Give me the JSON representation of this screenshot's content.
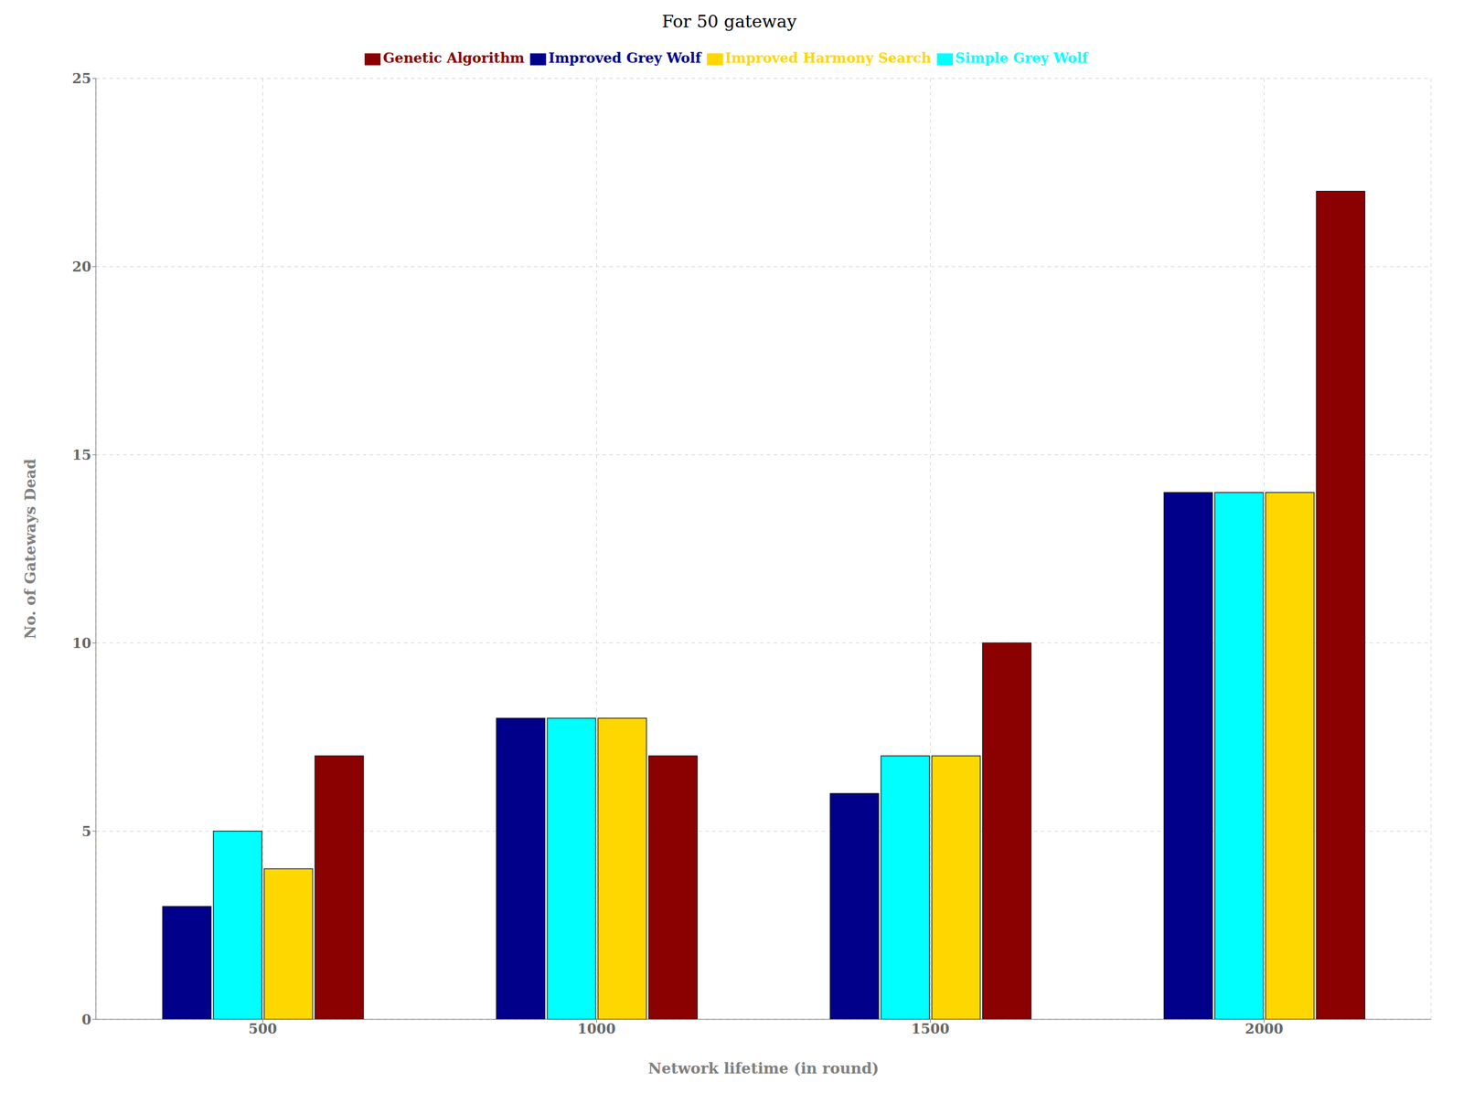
{
  "chart_data": {
    "type": "bar",
    "title": "For 50 gateway",
    "xlabel": "Network lifetime (in round)",
    "ylabel": "No. of Gateways Dead",
    "categories": [
      500,
      1000,
      1500,
      2000
    ],
    "series": [
      {
        "name": "Improved Grey Wolf",
        "color": "#00008B",
        "values": [
          3,
          8,
          6,
          14
        ]
      },
      {
        "name": "Simple Grey Wolf",
        "color": "#00FFFF",
        "values": [
          5,
          8,
          7,
          14
        ]
      },
      {
        "name": "Improved Harmony Search",
        "color": "#FFD700",
        "values": [
          4,
          8,
          7,
          14
        ]
      },
      {
        "name": "Genetic Algorithm",
        "color": "#8B0000",
        "values": [
          7,
          7,
          10,
          22
        ]
      }
    ],
    "ylim": [
      0,
      25
    ],
    "yticks": [
      0,
      5,
      10,
      15,
      20,
      25
    ],
    "grid": true,
    "legend": "top"
  }
}
